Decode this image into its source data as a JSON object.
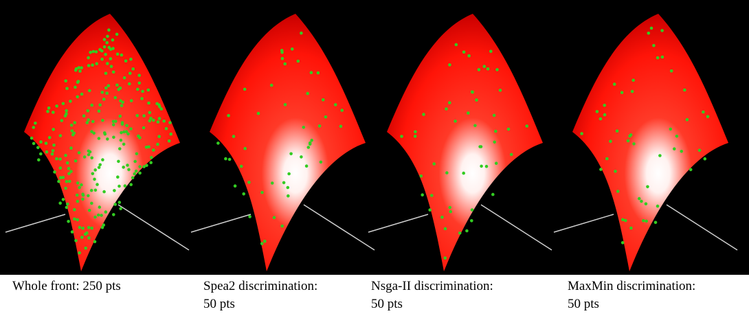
{
  "colors": {
    "background": "#000000",
    "surface_red": "#ff1a0a",
    "surface_dark": "#c80000",
    "highlight": "#ffffff",
    "point_fill": "#33cc22",
    "axis_line": "#cfcfcf",
    "caption_text": "#000000"
  },
  "panels": [
    {
      "caption": "Whole front: 250 pts",
      "point_count": 250
    },
    {
      "caption": "Spea2 discrimination:\n50 pts",
      "point_count": 50
    },
    {
      "caption": "Nsga-II discrimination:\n50 pts",
      "point_count": 50
    },
    {
      "caption": "MaxMin discrimination:\n50 pts",
      "point_count": 50
    }
  ]
}
